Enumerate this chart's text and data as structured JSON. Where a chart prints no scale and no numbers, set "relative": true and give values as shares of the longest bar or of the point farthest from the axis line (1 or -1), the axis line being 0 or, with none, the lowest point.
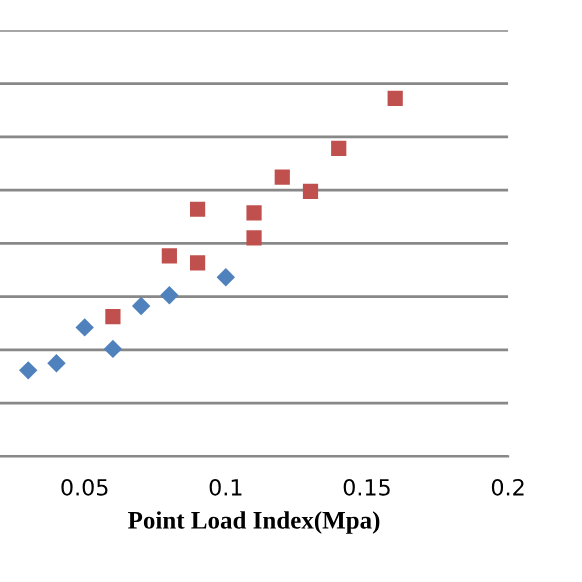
{
  "chart_data": {
    "type": "scatter",
    "xlabel": "Point Load Index(Mpa)",
    "relative": true,
    "grid": "y",
    "xlim": [
      0.02,
      0.2
    ],
    "xticks": [
      0.05,
      0.1,
      0.15,
      0.2
    ],
    "series": [
      {
        "color": "#4f81bd",
        "marker": "diamond",
        "x": [
          0.03,
          0.04,
          0.05,
          0.06,
          0.07,
          0.08,
          0.1
        ],
        "values": [
          0.24,
          0.26,
          0.36,
          0.3,
          0.42,
          0.45,
          0.5
        ]
      },
      {
        "color": "#c0504d",
        "marker": "square",
        "x": [
          0.06,
          0.08,
          0.09,
          0.09,
          0.11,
          0.11,
          0.12,
          0.13,
          0.14,
          0.16
        ],
        "values": [
          0.39,
          0.56,
          0.69,
          0.54,
          0.68,
          0.61,
          0.78,
          0.74,
          0.86,
          1
        ]
      }
    ]
  }
}
